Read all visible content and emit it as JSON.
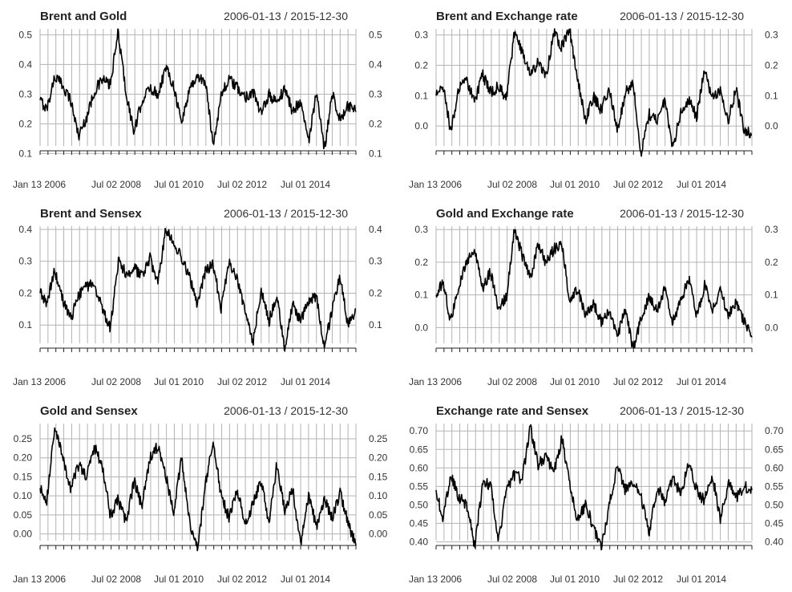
{
  "chart_data": [
    {
      "type": "line",
      "title": "Brent and Gold",
      "date_range": "2006-01-13 / 2015-12-30",
      "x_tick_labels": [
        "Jan 13 2006",
        "Jul 02 2008",
        "Jul 01 2010",
        "Jul 02 2012",
        "Jul 01 2014"
      ],
      "y_ticks": [
        0.1,
        0.2,
        0.3,
        0.4,
        0.5
      ],
      "y_tick_labels": [
        "0.1",
        "0.2",
        "0.3",
        "0.4",
        "0.5"
      ],
      "ylim": [
        0.09,
        0.52
      ],
      "grid": true,
      "series": [
        {
          "x": [
            "2006-01-13",
            "2006-04-01",
            "2006-07-01",
            "2006-10-01",
            "2007-01-01",
            "2007-04-01",
            "2007-07-01",
            "2007-10-01",
            "2008-01-01",
            "2008-04-01",
            "2008-07-01",
            "2008-10-01",
            "2009-01-01",
            "2009-04-01",
            "2009-07-01",
            "2009-10-01",
            "2010-01-01",
            "2010-04-01",
            "2010-07-01",
            "2010-10-01",
            "2011-01-01",
            "2011-04-01",
            "2011-07-01",
            "2011-10-01",
            "2012-01-01",
            "2012-04-01",
            "2012-07-01",
            "2012-10-01",
            "2013-01-01",
            "2013-04-01",
            "2013-07-01",
            "2013-10-01",
            "2014-01-01",
            "2014-04-01",
            "2014-07-01",
            "2014-10-01",
            "2015-01-01",
            "2015-04-01",
            "2015-07-01",
            "2015-10-01",
            "2015-12-30"
          ],
          "values": [
            0.28,
            0.25,
            0.36,
            0.33,
            0.28,
            0.16,
            0.22,
            0.31,
            0.35,
            0.33,
            0.51,
            0.3,
            0.17,
            0.28,
            0.32,
            0.3,
            0.39,
            0.33,
            0.2,
            0.32,
            0.36,
            0.34,
            0.13,
            0.3,
            0.35,
            0.32,
            0.29,
            0.31,
            0.23,
            0.3,
            0.27,
            0.32,
            0.24,
            0.28,
            0.14,
            0.3,
            0.11,
            0.31,
            0.21,
            0.26,
            0.24
          ]
        }
      ]
    },
    {
      "type": "line",
      "title": "Brent and Exchange rate",
      "date_range": "2006-01-13 / 2015-12-30",
      "x_tick_labels": [
        "Jan 13 2006",
        "Jul 02 2008",
        "Jul 01 2010",
        "Jul 02 2012",
        "Jul 01 2014"
      ],
      "y_ticks": [
        0.0,
        0.1,
        0.2,
        0.3
      ],
      "y_tick_labels": [
        "0.0",
        "0.1",
        "0.2",
        "0.3"
      ],
      "ylim": [
        -0.1,
        0.32
      ],
      "grid": true,
      "series": [
        {
          "x": [
            "2006-01-13",
            "2006-04-01",
            "2006-07-01",
            "2006-10-01",
            "2007-01-01",
            "2007-04-01",
            "2007-07-01",
            "2007-10-01",
            "2008-01-01",
            "2008-04-01",
            "2008-07-01",
            "2008-10-01",
            "2009-01-01",
            "2009-04-01",
            "2009-07-01",
            "2009-10-01",
            "2010-01-01",
            "2010-04-01",
            "2010-07-01",
            "2010-10-01",
            "2011-01-01",
            "2011-04-01",
            "2011-07-01",
            "2011-10-01",
            "2012-01-01",
            "2012-04-01",
            "2012-07-01",
            "2012-10-01",
            "2013-01-01",
            "2013-04-01",
            "2013-07-01",
            "2013-10-01",
            "2014-01-01",
            "2014-04-01",
            "2014-07-01",
            "2014-10-01",
            "2015-01-01",
            "2015-04-01",
            "2015-07-01",
            "2015-10-01",
            "2015-12-30"
          ],
          "values": [
            0.1,
            0.14,
            -0.02,
            0.12,
            0.15,
            0.08,
            0.17,
            0.11,
            0.13,
            0.09,
            0.3,
            0.25,
            0.17,
            0.21,
            0.16,
            0.31,
            0.26,
            0.32,
            0.15,
            0.02,
            0.1,
            0.05,
            0.13,
            -0.02,
            0.11,
            0.14,
            -0.09,
            0.04,
            0.02,
            0.08,
            -0.07,
            0.04,
            0.09,
            0.03,
            0.19,
            0.09,
            0.12,
            0.02,
            0.12,
            -0.01,
            -0.03
          ]
        }
      ]
    },
    {
      "type": "line",
      "title": "Brent and Sensex",
      "date_range": "2006-01-13 / 2015-12-30",
      "x_tick_labels": [
        "Jan 13 2006",
        "Jul 02 2008",
        "Jul 01 2010",
        "Jul 02 2012",
        "Jul 01 2014"
      ],
      "y_ticks": [
        0.1,
        0.2,
        0.3,
        0.4
      ],
      "y_tick_labels": [
        "0.1",
        "0.2",
        "0.3",
        "0.4"
      ],
      "ylim": [
        0.01,
        0.41
      ],
      "grid": true,
      "series": [
        {
          "x": [
            "2006-01-13",
            "2006-04-01",
            "2006-07-01",
            "2006-10-01",
            "2007-01-01",
            "2007-04-01",
            "2007-07-01",
            "2007-10-01",
            "2008-01-01",
            "2008-04-01",
            "2008-07-01",
            "2008-10-01",
            "2009-01-01",
            "2009-04-01",
            "2009-07-01",
            "2009-10-01",
            "2010-01-01",
            "2010-04-01",
            "2010-07-01",
            "2010-10-01",
            "2011-01-01",
            "2011-04-01",
            "2011-07-01",
            "2011-10-01",
            "2012-01-01",
            "2012-04-01",
            "2012-07-01",
            "2012-10-01",
            "2013-01-01",
            "2013-04-01",
            "2013-07-01",
            "2013-10-01",
            "2014-01-01",
            "2014-04-01",
            "2014-07-01",
            "2014-10-01",
            "2015-01-01",
            "2015-04-01",
            "2015-07-01",
            "2015-10-01",
            "2015-12-30"
          ],
          "values": [
            0.2,
            0.17,
            0.27,
            0.18,
            0.12,
            0.19,
            0.22,
            0.23,
            0.15,
            0.09,
            0.3,
            0.26,
            0.28,
            0.25,
            0.31,
            0.23,
            0.4,
            0.36,
            0.31,
            0.25,
            0.16,
            0.27,
            0.29,
            0.15,
            0.3,
            0.24,
            0.14,
            0.05,
            0.21,
            0.11,
            0.2,
            0.02,
            0.17,
            0.11,
            0.17,
            0.19,
            0.03,
            0.15,
            0.25,
            0.1,
            0.15
          ]
        }
      ]
    },
    {
      "type": "line",
      "title": "Gold and Exchange rate",
      "date_range": "2006-01-13 / 2015-12-30",
      "x_tick_labels": [
        "Jan 13 2006",
        "Jul 02 2008",
        "Jul 01 2010",
        "Jul 02 2012",
        "Jul 01 2014"
      ],
      "y_ticks": [
        0.0,
        0.1,
        0.2,
        0.3
      ],
      "y_tick_labels": [
        "0.0",
        "0.1",
        "0.2",
        "0.3"
      ],
      "ylim": [
        -0.08,
        0.31
      ],
      "grid": true,
      "series": [
        {
          "x": [
            "2006-01-13",
            "2006-04-01",
            "2006-07-01",
            "2006-10-01",
            "2007-01-01",
            "2007-04-01",
            "2007-07-01",
            "2007-10-01",
            "2008-01-01",
            "2008-04-01",
            "2008-07-01",
            "2008-10-01",
            "2009-01-01",
            "2009-04-01",
            "2009-07-01",
            "2009-10-01",
            "2010-01-01",
            "2010-04-01",
            "2010-07-01",
            "2010-10-01",
            "2011-01-01",
            "2011-04-01",
            "2011-07-01",
            "2011-10-01",
            "2012-01-01",
            "2012-04-01",
            "2012-07-01",
            "2012-10-01",
            "2013-01-01",
            "2013-04-01",
            "2013-07-01",
            "2013-10-01",
            "2014-01-01",
            "2014-04-01",
            "2014-07-01",
            "2014-10-01",
            "2015-01-01",
            "2015-04-01",
            "2015-07-01",
            "2015-10-01",
            "2015-12-30"
          ],
          "values": [
            0.1,
            0.14,
            0.02,
            0.13,
            0.2,
            0.24,
            0.12,
            0.17,
            0.06,
            0.09,
            0.3,
            0.22,
            0.15,
            0.25,
            0.2,
            0.24,
            0.26,
            0.08,
            0.12,
            0.04,
            0.07,
            0.02,
            0.05,
            -0.03,
            0.06,
            -0.07,
            0.03,
            0.09,
            0.05,
            0.12,
            0.02,
            0.08,
            0.15,
            0.03,
            0.13,
            0.06,
            0.11,
            0.04,
            0.08,
            0.02,
            -0.03
          ]
        }
      ]
    },
    {
      "type": "line",
      "title": "Gold and Sensex",
      "date_range": "2006-01-13 / 2015-12-30",
      "x_tick_labels": [
        "Jan 13 2006",
        "Jul 02 2008",
        "Jul 01 2010",
        "Jul 02 2012",
        "Jul 01 2014"
      ],
      "y_ticks": [
        0.0,
        0.05,
        0.1,
        0.15,
        0.2,
        0.25
      ],
      "y_tick_labels": [
        "0.00",
        "0.05",
        "0.10",
        "0.15",
        "0.20",
        "0.25"
      ],
      "ylim": [
        -0.045,
        0.29
      ],
      "grid": true,
      "series": [
        {
          "x": [
            "2006-01-13",
            "2006-04-01",
            "2006-07-01",
            "2006-10-01",
            "2007-01-01",
            "2007-04-01",
            "2007-07-01",
            "2007-10-01",
            "2008-01-01",
            "2008-04-01",
            "2008-07-01",
            "2008-10-01",
            "2009-01-01",
            "2009-04-01",
            "2009-07-01",
            "2009-10-01",
            "2010-01-01",
            "2010-04-01",
            "2010-07-01",
            "2010-10-01",
            "2011-01-01",
            "2011-04-01",
            "2011-07-01",
            "2011-10-01",
            "2012-01-01",
            "2012-04-01",
            "2012-07-01",
            "2012-10-01",
            "2013-01-01",
            "2013-04-01",
            "2013-07-01",
            "2013-10-01",
            "2014-01-01",
            "2014-04-01",
            "2014-07-01",
            "2014-10-01",
            "2015-01-01",
            "2015-04-01",
            "2015-07-01",
            "2015-10-01",
            "2015-12-30"
          ],
          "values": [
            0.12,
            0.09,
            0.28,
            0.2,
            0.12,
            0.18,
            0.15,
            0.23,
            0.18,
            0.05,
            0.09,
            0.03,
            0.14,
            0.07,
            0.2,
            0.23,
            0.15,
            0.06,
            0.2,
            0.03,
            -0.04,
            0.13,
            0.24,
            0.1,
            0.04,
            0.12,
            0.02,
            0.08,
            0.14,
            0.03,
            0.18,
            0.06,
            0.12,
            -0.03,
            0.1,
            0.02,
            0.09,
            0.04,
            0.11,
            0.03,
            -0.03
          ]
        }
      ]
    },
    {
      "type": "line",
      "title": "Exchange rate and Sensex",
      "date_range": "2006-01-13 / 2015-12-30",
      "x_tick_labels": [
        "Jan 13 2006",
        "Jul 02 2008",
        "Jul 01 2010",
        "Jul 02 2012",
        "Jul 01 2014"
      ],
      "y_ticks": [
        0.4,
        0.45,
        0.5,
        0.55,
        0.6,
        0.65,
        0.7
      ],
      "y_tick_labels": [
        "0.40",
        "0.45",
        "0.50",
        "0.55",
        "0.60",
        "0.65",
        "0.70"
      ],
      "ylim": [
        0.375,
        0.72
      ],
      "grid": true,
      "series": [
        {
          "x": [
            "2006-01-13",
            "2006-04-01",
            "2006-07-01",
            "2006-10-01",
            "2007-01-01",
            "2007-04-01",
            "2007-07-01",
            "2007-10-01",
            "2008-01-01",
            "2008-04-01",
            "2008-07-01",
            "2008-10-01",
            "2009-01-01",
            "2009-04-01",
            "2009-07-01",
            "2009-10-01",
            "2010-01-01",
            "2010-04-01",
            "2010-07-01",
            "2010-10-01",
            "2011-01-01",
            "2011-04-01",
            "2011-07-01",
            "2011-10-01",
            "2012-01-01",
            "2012-04-01",
            "2012-07-01",
            "2012-10-01",
            "2013-01-01",
            "2013-04-01",
            "2013-07-01",
            "2013-10-01",
            "2014-01-01",
            "2014-04-01",
            "2014-07-01",
            "2014-10-01",
            "2015-01-01",
            "2015-04-01",
            "2015-07-01",
            "2015-10-01",
            "2015-12-30"
          ],
          "values": [
            0.54,
            0.46,
            0.58,
            0.52,
            0.5,
            0.39,
            0.55,
            0.56,
            0.4,
            0.54,
            0.58,
            0.57,
            0.71,
            0.61,
            0.63,
            0.59,
            0.68,
            0.56,
            0.46,
            0.5,
            0.44,
            0.38,
            0.5,
            0.61,
            0.54,
            0.56,
            0.52,
            0.42,
            0.55,
            0.51,
            0.57,
            0.53,
            0.61,
            0.54,
            0.51,
            0.58,
            0.46,
            0.56,
            0.52,
            0.55,
            0.54
          ]
        }
      ]
    }
  ]
}
